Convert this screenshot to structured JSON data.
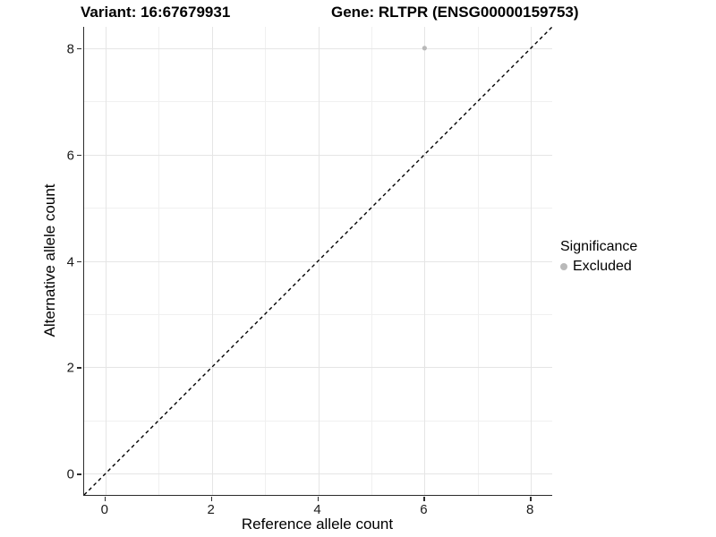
{
  "chart_data": {
    "type": "scatter",
    "titles": {
      "left": "Variant: 16:67679931",
      "right": "Gene: RLTPR (ENSG00000159753)"
    },
    "xlabel": "Reference allele count",
    "ylabel": "Alternative allele count",
    "xlim": [
      -0.4,
      8.4
    ],
    "ylim": [
      -0.4,
      8.4
    ],
    "x_major_ticks": [
      0,
      2,
      4,
      6,
      8
    ],
    "y_major_ticks": [
      0,
      2,
      4,
      6,
      8
    ],
    "x_minor_gridlines": [
      1,
      3,
      5,
      7
    ],
    "y_minor_gridlines": [
      1,
      3,
      5,
      7
    ],
    "grid": "on",
    "series": [
      {
        "name": "Excluded",
        "color": "#b9b9b9",
        "points": [
          {
            "x": 6,
            "y": 8
          }
        ]
      }
    ],
    "reference_line": {
      "type": "identity",
      "slope": 1,
      "intercept": 0,
      "style": "dashed",
      "color": "#000000"
    },
    "legend": {
      "position": "right",
      "title": "Significance",
      "entries": [
        {
          "label": "Excluded",
          "color": "#b9b9b9"
        }
      ]
    }
  },
  "colors": {
    "background": "#ffffff",
    "axis_line": "#2b2b2b",
    "tick_mark": "#2e2e2e",
    "tick_label": "#1a1a1a",
    "grid_major": "#e5e5e5",
    "grid_minor": "#f0f0f0"
  }
}
